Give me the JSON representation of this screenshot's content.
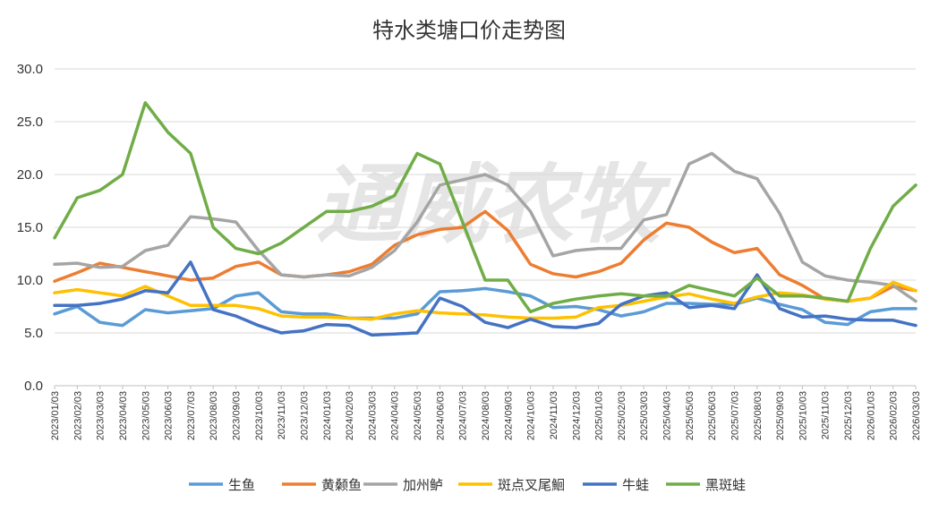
{
  "watermark": "通威农牧",
  "chart_data": {
    "type": "line",
    "title": "特水类塘口价走势图",
    "xlabel": "",
    "ylabel": "",
    "ylim": [
      0,
      30
    ],
    "yticks": [
      "0.0",
      "5.0",
      "10.0",
      "15.0",
      "20.0",
      "25.0",
      "30.0"
    ],
    "x_ticks": [
      "2023/01/03",
      "2023/02/03",
      "2023/03/03",
      "2023/04/03",
      "2023/05/03",
      "2023/06/03",
      "2023/07/03",
      "2023/08/03",
      "2023/09/03",
      "2023/10/03",
      "2023/11/03",
      "2023/12/03",
      "2024/01/03",
      "2024/02/03",
      "2024/03/03",
      "2024/04/03",
      "2024/05/03",
      "2024/06/03",
      "2024/07/03",
      "2024/08/03",
      "2024/09/03",
      "2024/10/03",
      "2024/11/03",
      "2024/12/03",
      "2025/01/03",
      "2025/02/03",
      "2025/03/03",
      "2025/04/03",
      "2025/05/03",
      "2025/06/03",
      "2025/07/03",
      "2025/08/03",
      "2025/09/03",
      "2025/10/03",
      "2025/11/03",
      "2025/12/03",
      "2026/01/03",
      "2026/02/03",
      "2026/03/03"
    ],
    "grid": "horizontal",
    "legend_position": "bottom",
    "series": [
      {
        "name": "生鱼",
        "color": "#5B9BD5",
        "values": [
          6.8,
          7.5,
          6.0,
          5.7,
          7.2,
          6.9,
          7.1,
          7.3,
          8.5,
          8.8,
          7.0,
          6.8,
          6.8,
          6.4,
          6.4,
          6.4,
          6.8,
          8.9,
          9.0,
          9.2,
          8.9,
          8.5,
          7.4,
          7.5,
          7.2,
          6.6,
          7.0,
          7.8,
          7.8,
          7.7,
          7.7,
          8.3,
          7.7,
          7.2,
          6.0,
          5.8,
          7.0,
          7.3,
          7.3
        ]
      },
      {
        "name": "黄颡鱼",
        "color": "#ED7D31",
        "values": [
          9.9,
          10.7,
          11.6,
          11.2,
          10.8,
          10.4,
          10.0,
          10.2,
          11.3,
          11.7,
          10.5,
          10.3,
          10.5,
          10.8,
          11.5,
          13.3,
          14.3,
          14.8,
          15.0,
          16.5,
          14.7,
          11.5,
          10.6,
          10.3,
          10.8,
          11.6,
          13.8,
          15.4,
          15.0,
          13.6,
          12.6,
          13.0,
          10.5,
          9.5,
          8.2,
          8.0,
          8.3,
          9.4,
          9.0
        ]
      },
      {
        "name": "加州鲈",
        "color": "#A5A5A5",
        "values": [
          11.5,
          11.6,
          11.2,
          11.3,
          12.8,
          13.3,
          16.0,
          15.8,
          15.5,
          12.8,
          10.5,
          10.3,
          10.5,
          10.4,
          11.2,
          12.8,
          15.5,
          19.0,
          19.5,
          20.0,
          19.0,
          16.5,
          12.3,
          12.8,
          13.0,
          13.0,
          15.7,
          16.2,
          21.0,
          22.0,
          20.3,
          19.6,
          16.3,
          11.7,
          10.4,
          10.0,
          9.8,
          9.5,
          8.0
        ]
      },
      {
        "name": "斑点叉尾鮰",
        "color": "#FFC000",
        "values": [
          8.8,
          9.1,
          8.8,
          8.5,
          9.4,
          8.5,
          7.6,
          7.6,
          7.6,
          7.3,
          6.6,
          6.5,
          6.5,
          6.4,
          6.3,
          6.8,
          7.1,
          6.9,
          6.8,
          6.7,
          6.5,
          6.4,
          6.4,
          6.5,
          7.4,
          7.6,
          8.0,
          8.4,
          8.7,
          8.2,
          7.8,
          8.4,
          8.8,
          8.6,
          8.2,
          8.0,
          8.3,
          9.8,
          9.0
        ]
      },
      {
        "name": "牛蛙",
        "color": "#4472C4",
        "values": [
          7.6,
          7.6,
          7.8,
          8.2,
          9.0,
          8.8,
          11.7,
          7.2,
          6.6,
          5.7,
          5.0,
          5.2,
          5.8,
          5.7,
          4.8,
          4.9,
          5.0,
          8.3,
          7.5,
          6.0,
          5.5,
          6.3,
          5.6,
          5.5,
          5.9,
          7.7,
          8.5,
          8.8,
          7.4,
          7.6,
          7.3,
          10.5,
          7.3,
          6.5,
          6.6,
          6.3,
          6.2,
          6.2,
          5.7
        ]
      },
      {
        "name": "黑斑蛙",
        "color": "#70AD47",
        "values": [
          14.0,
          17.8,
          18.5,
          20.0,
          26.8,
          24.0,
          22.0,
          15.0,
          13.0,
          12.5,
          13.5,
          15.0,
          16.5,
          16.5,
          17.0,
          18.0,
          22.0,
          21.0,
          15.5,
          10.0,
          10.0,
          7.0,
          7.8,
          8.2,
          8.5,
          8.7,
          8.5,
          8.5,
          9.5,
          9.0,
          8.5,
          10.2,
          8.5,
          8.5,
          8.3,
          8.0,
          13.0,
          17.0,
          19.0
        ]
      }
    ]
  }
}
